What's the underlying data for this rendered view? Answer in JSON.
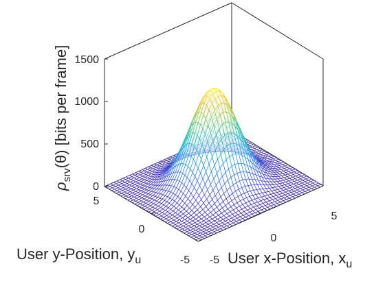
{
  "chart_data": {
    "type": "surface",
    "title": "",
    "xlabel": "User x-Position, x",
    "xlabel_sub": "u",
    "ylabel": "User y-Position, y",
    "ylabel_sub": "u",
    "zlabel_rho": "ρ",
    "zlabel_sub": "srv",
    "zlabel_tail": "(θ) [bits per frame]",
    "xlim": [
      -5,
      5
    ],
    "ylim": [
      -5,
      5
    ],
    "zlim": [
      0,
      1500
    ],
    "x_ticks": [
      "-5",
      "0",
      "5"
    ],
    "y_ticks": [
      "-5",
      "0",
      "5"
    ],
    "z_ticks": [
      "0",
      "500",
      "1000",
      "1500"
    ],
    "peak_value": 1150,
    "peak_location": [
      0,
      0
    ],
    "gaussian_sigma": 1.55,
    "grid_lines": 41,
    "colormap": "parula",
    "box": true,
    "grid": false
  }
}
